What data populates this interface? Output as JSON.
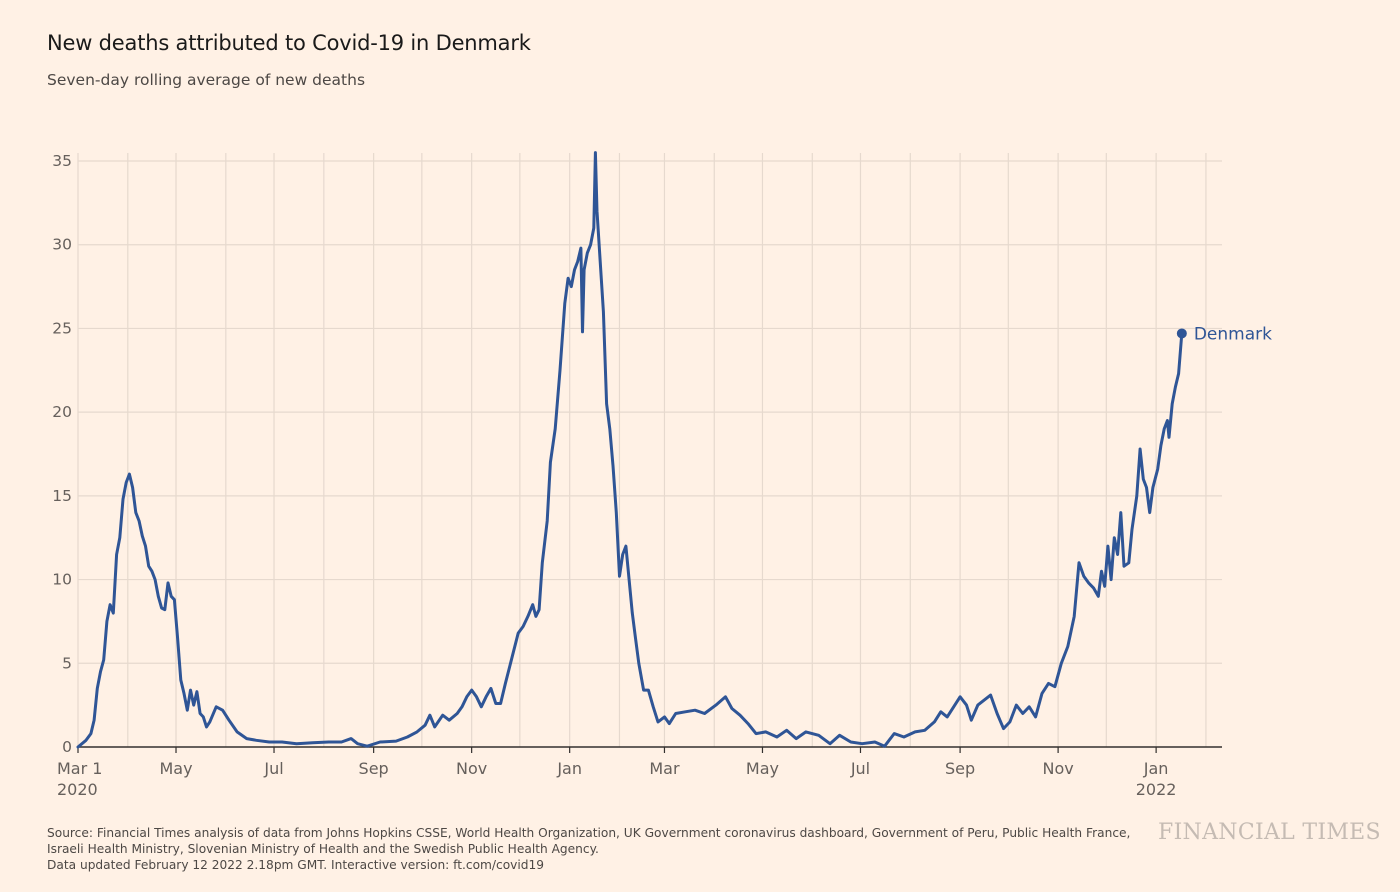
{
  "chart_data": {
    "type": "line",
    "title": "New deaths attributed to Covid-19 in Denmark",
    "subtitle": "Seven-day rolling average of new deaths",
    "xlabel": "",
    "ylabel": "",
    "ylim": [
      0,
      35
    ],
    "yticks": [
      0,
      5,
      10,
      15,
      20,
      25,
      30,
      35
    ],
    "x_ticks": [
      {
        "date": "2020-03-01",
        "label": "Mar 1",
        "sublabel": "2020"
      },
      {
        "date": "2020-05-01",
        "label": "May",
        "sublabel": ""
      },
      {
        "date": "2020-07-01",
        "label": "Jul",
        "sublabel": ""
      },
      {
        "date": "2020-09-01",
        "label": "Sep",
        "sublabel": ""
      },
      {
        "date": "2020-11-01",
        "label": "Nov",
        "sublabel": ""
      },
      {
        "date": "2021-01-01",
        "label": "Jan",
        "sublabel": ""
      },
      {
        "date": "2021-03-01",
        "label": "Mar",
        "sublabel": ""
      },
      {
        "date": "2021-05-01",
        "label": "May",
        "sublabel": ""
      },
      {
        "date": "2021-07-01",
        "label": "Jul",
        "sublabel": ""
      },
      {
        "date": "2021-09-01",
        "label": "Sep",
        "sublabel": ""
      },
      {
        "date": "2021-11-01",
        "label": "Nov",
        "sublabel": ""
      },
      {
        "date": "2022-01-01",
        "label": "Jan",
        "sublabel": "2022"
      }
    ],
    "x_range": [
      "2020-03-01",
      "2022-02-11"
    ],
    "grid": true,
    "series": [
      {
        "name": "Denmark",
        "color": "#2F5596",
        "points": [
          [
            "2020-03-01",
            0
          ],
          [
            "2020-03-06",
            0.4
          ],
          [
            "2020-03-09",
            0.8
          ],
          [
            "2020-03-11",
            1.6
          ],
          [
            "2020-03-13",
            3.5
          ],
          [
            "2020-03-15",
            4.5
          ],
          [
            "2020-03-17",
            5.2
          ],
          [
            "2020-03-19",
            7.5
          ],
          [
            "2020-03-21",
            8.5
          ],
          [
            "2020-03-23",
            8
          ],
          [
            "2020-03-25",
            11.5
          ],
          [
            "2020-03-27",
            12.5
          ],
          [
            "2020-03-29",
            14.8
          ],
          [
            "2020-03-31",
            15.8
          ],
          [
            "2020-04-02",
            16.3
          ],
          [
            "2020-04-04",
            15.5
          ],
          [
            "2020-04-06",
            14
          ],
          [
            "2020-04-08",
            13.5
          ],
          [
            "2020-04-10",
            12.6
          ],
          [
            "2020-04-12",
            12
          ],
          [
            "2020-04-14",
            10.8
          ],
          [
            "2020-04-16",
            10.5
          ],
          [
            "2020-04-18",
            10
          ],
          [
            "2020-04-20",
            9
          ],
          [
            "2020-04-22",
            8.3
          ],
          [
            "2020-04-24",
            8.2
          ],
          [
            "2020-04-26",
            9.8
          ],
          [
            "2020-04-28",
            9
          ],
          [
            "2020-04-30",
            8.8
          ],
          [
            "2020-05-02",
            6.5
          ],
          [
            "2020-05-04",
            4
          ],
          [
            "2020-05-06",
            3.2
          ],
          [
            "2020-05-08",
            2.2
          ],
          [
            "2020-05-10",
            3.4
          ],
          [
            "2020-05-12",
            2.5
          ],
          [
            "2020-05-14",
            3.3
          ],
          [
            "2020-05-16",
            2
          ],
          [
            "2020-05-18",
            1.8
          ],
          [
            "2020-05-20",
            1.2
          ],
          [
            "2020-05-22",
            1.5
          ],
          [
            "2020-05-26",
            2.4
          ],
          [
            "2020-05-30",
            2.2
          ],
          [
            "2020-06-03",
            1.6
          ],
          [
            "2020-06-08",
            0.9
          ],
          [
            "2020-06-14",
            0.5
          ],
          [
            "2020-06-20",
            0.4
          ],
          [
            "2020-06-28",
            0.3
          ],
          [
            "2020-07-06",
            0.3
          ],
          [
            "2020-07-15",
            0.2
          ],
          [
            "2020-07-25",
            0.25
          ],
          [
            "2020-08-04",
            0.3
          ],
          [
            "2020-08-12",
            0.3
          ],
          [
            "2020-08-18",
            0.5
          ],
          [
            "2020-08-22",
            0.2
          ],
          [
            "2020-08-28",
            0.05
          ],
          [
            "2020-09-05",
            0.3
          ],
          [
            "2020-09-15",
            0.35
          ],
          [
            "2020-09-22",
            0.6
          ],
          [
            "2020-09-28",
            0.9
          ],
          [
            "2020-10-03",
            1.3
          ],
          [
            "2020-10-06",
            1.9
          ],
          [
            "2020-10-09",
            1.2
          ],
          [
            "2020-10-14",
            1.9
          ],
          [
            "2020-10-18",
            1.6
          ],
          [
            "2020-10-23",
            2
          ],
          [
            "2020-10-26",
            2.4
          ],
          [
            "2020-10-29",
            3
          ],
          [
            "2020-11-01",
            3.4
          ],
          [
            "2020-11-04",
            3
          ],
          [
            "2020-11-07",
            2.4
          ],
          [
            "2020-11-10",
            3
          ],
          [
            "2020-11-13",
            3.5
          ],
          [
            "2020-11-16",
            2.6
          ],
          [
            "2020-11-19",
            2.6
          ],
          [
            "2020-11-22",
            3.8
          ],
          [
            "2020-11-26",
            5.3
          ],
          [
            "2020-11-30",
            6.8
          ],
          [
            "2020-12-03",
            7.2
          ],
          [
            "2020-12-06",
            7.8
          ],
          [
            "2020-12-09",
            8.5
          ],
          [
            "2020-12-11",
            7.8
          ],
          [
            "2020-12-13",
            8.2
          ],
          [
            "2020-12-15",
            11
          ],
          [
            "2020-12-18",
            13.5
          ],
          [
            "2020-12-20",
            17
          ],
          [
            "2020-12-23",
            19
          ],
          [
            "2020-12-26",
            22.5
          ],
          [
            "2020-12-29",
            26.5
          ],
          [
            "2020-12-31",
            28
          ],
          [
            "2021-01-02",
            27.5
          ],
          [
            "2021-01-04",
            28.5
          ],
          [
            "2021-01-06",
            29
          ],
          [
            "2021-01-08",
            29.8
          ],
          [
            "2021-01-09",
            24.8
          ],
          [
            "2021-01-10",
            28.5
          ],
          [
            "2021-01-12",
            29.5
          ],
          [
            "2021-01-14",
            30
          ],
          [
            "2021-01-16",
            31
          ],
          [
            "2021-01-17",
            35.5
          ],
          [
            "2021-01-18",
            32
          ],
          [
            "2021-01-20",
            29
          ],
          [
            "2021-01-22",
            26
          ],
          [
            "2021-01-24",
            20.5
          ],
          [
            "2021-01-26",
            19
          ],
          [
            "2021-01-28",
            16.8
          ],
          [
            "2021-01-30",
            14
          ],
          [
            "2021-02-01",
            10.2
          ],
          [
            "2021-02-03",
            11.5
          ],
          [
            "2021-02-05",
            12
          ],
          [
            "2021-02-07",
            10
          ],
          [
            "2021-02-09",
            8
          ],
          [
            "2021-02-11",
            6.5
          ],
          [
            "2021-02-13",
            5
          ],
          [
            "2021-02-16",
            3.4
          ],
          [
            "2021-02-19",
            3.4
          ],
          [
            "2021-02-22",
            2.4
          ],
          [
            "2021-02-25",
            1.5
          ],
          [
            "2021-03-01",
            1.8
          ],
          [
            "2021-03-04",
            1.4
          ],
          [
            "2021-03-08",
            2
          ],
          [
            "2021-03-14",
            2.1
          ],
          [
            "2021-03-20",
            2.2
          ],
          [
            "2021-03-26",
            2
          ],
          [
            "2021-04-02",
            2.5
          ],
          [
            "2021-04-08",
            3
          ],
          [
            "2021-04-12",
            2.3
          ],
          [
            "2021-04-17",
            1.9
          ],
          [
            "2021-04-22",
            1.4
          ],
          [
            "2021-04-27",
            0.8
          ],
          [
            "2021-05-03",
            0.9
          ],
          [
            "2021-05-10",
            0.6
          ],
          [
            "2021-05-16",
            1
          ],
          [
            "2021-05-22",
            0.5
          ],
          [
            "2021-05-28",
            0.9
          ],
          [
            "2021-06-05",
            0.7
          ],
          [
            "2021-06-12",
            0.2
          ],
          [
            "2021-06-18",
            0.7
          ],
          [
            "2021-06-25",
            0.3
          ],
          [
            "2021-07-02",
            0.2
          ],
          [
            "2021-07-10",
            0.3
          ],
          [
            "2021-07-16",
            0.05
          ],
          [
            "2021-07-22",
            0.8
          ],
          [
            "2021-07-28",
            0.6
          ],
          [
            "2021-08-04",
            0.9
          ],
          [
            "2021-08-10",
            1
          ],
          [
            "2021-08-16",
            1.5
          ],
          [
            "2021-08-20",
            2.1
          ],
          [
            "2021-08-24",
            1.8
          ],
          [
            "2021-08-28",
            2.4
          ],
          [
            "2021-09-01",
            3
          ],
          [
            "2021-09-05",
            2.5
          ],
          [
            "2021-09-08",
            1.6
          ],
          [
            "2021-09-12",
            2.5
          ],
          [
            "2021-09-16",
            2.8
          ],
          [
            "2021-09-20",
            3.1
          ],
          [
            "2021-09-24",
            2
          ],
          [
            "2021-09-28",
            1.1
          ],
          [
            "2021-10-02",
            1.5
          ],
          [
            "2021-10-06",
            2.5
          ],
          [
            "2021-10-10",
            2
          ],
          [
            "2021-10-14",
            2.4
          ],
          [
            "2021-10-18",
            1.8
          ],
          [
            "2021-10-22",
            3.2
          ],
          [
            "2021-10-26",
            3.8
          ],
          [
            "2021-10-30",
            3.6
          ],
          [
            "2021-11-03",
            5
          ],
          [
            "2021-11-07",
            6
          ],
          [
            "2021-11-11",
            7.8
          ],
          [
            "2021-11-14",
            11
          ],
          [
            "2021-11-17",
            10.2
          ],
          [
            "2021-11-20",
            9.8
          ],
          [
            "2021-11-23",
            9.5
          ],
          [
            "2021-11-26",
            9
          ],
          [
            "2021-11-28",
            10.5
          ],
          [
            "2021-11-30",
            9.6
          ],
          [
            "2021-12-02",
            12
          ],
          [
            "2021-12-04",
            10
          ],
          [
            "2021-12-06",
            12.5
          ],
          [
            "2021-12-08",
            11.5
          ],
          [
            "2021-12-10",
            14
          ],
          [
            "2021-12-12",
            10.8
          ],
          [
            "2021-12-15",
            11
          ],
          [
            "2021-12-17",
            13
          ],
          [
            "2021-12-20",
            15
          ],
          [
            "2021-12-22",
            17.8
          ],
          [
            "2021-12-24",
            16
          ],
          [
            "2021-12-26",
            15.5
          ],
          [
            "2021-12-28",
            14
          ],
          [
            "2021-12-30",
            15.5
          ],
          [
            "2022-01-02",
            16.6
          ],
          [
            "2022-01-04",
            18
          ],
          [
            "2022-01-06",
            19
          ],
          [
            "2022-01-08",
            19.5
          ],
          [
            "2022-01-09",
            18.5
          ],
          [
            "2022-01-11",
            20.5
          ],
          [
            "2022-01-13",
            21.5
          ],
          [
            "2022-01-15",
            22.3
          ],
          [
            "2022-01-17",
            24.7
          ]
        ]
      }
    ],
    "annotations": [
      {
        "text": "Denmark",
        "date": "2022-01-17",
        "value": 24.7
      }
    ]
  },
  "footer": {
    "source_line1": "Source: Financial Times analysis of data from Johns Hopkins CSSE, World Health Organization, UK Government coronavirus dashboard, Government of Peru, Public Health France,",
    "source_line2": "Israeli Health Ministry, Slovenian Ministry of Health and the Swedish Public Health Agency.",
    "updated": "Data updated February 12 2022 2.18pm GMT. Interactive version: ft.com/covid19",
    "brand": "FINANCIAL TIMES"
  }
}
